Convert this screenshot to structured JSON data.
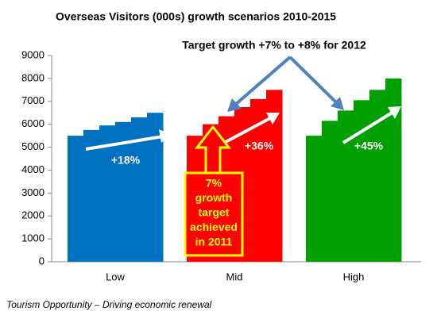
{
  "chart_data": {
    "type": "stepbar",
    "title": "Overseas Visitors (000s) growth scenarios 2010-2015",
    "categories": [
      "Low",
      "Mid",
      "High"
    ],
    "colors": [
      "#0070c0",
      "#ff0000",
      "#00a000"
    ],
    "values": [
      [
        5500,
        5750,
        5950,
        6100,
        6300,
        6500
      ],
      [
        5500,
        6000,
        6350,
        6750,
        7100,
        7500
      ],
      [
        5500,
        6150,
        6600,
        7050,
        7500,
        8000
      ]
    ],
    "growth_labels": [
      "+18%",
      "+36%",
      "+45%"
    ],
    "ylim": [
      0,
      9000
    ],
    "yticks": [
      0,
      1000,
      2000,
      3000,
      4000,
      5000,
      6000,
      7000,
      8000,
      9000
    ],
    "annotation": "Target growth +7% to +8% for 2012",
    "callout": [
      "7%",
      "growth",
      "target",
      "achieved",
      "in 2011"
    ]
  },
  "footer": "Tourism Opportunity – Driving economic renewal"
}
